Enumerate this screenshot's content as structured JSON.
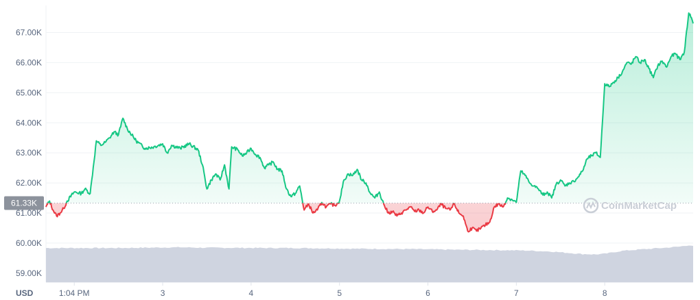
{
  "chart_data": {
    "type": "line",
    "currency_label": "USD",
    "baseline_value": 61330,
    "baseline_label": "61.33K",
    "ylim": [
      58700,
      67900
    ],
    "y_ticks": [
      {
        "value": 59000,
        "label": "59.00K"
      },
      {
        "value": 60000,
        "label": "60.00K"
      },
      {
        "value": 61000,
        "label": "61.00K"
      },
      {
        "value": 62000,
        "label": "62.00K"
      },
      {
        "value": 63000,
        "label": "63.00K"
      },
      {
        "value": 64000,
        "label": "64.00K"
      },
      {
        "value": 65000,
        "label": "65.00K"
      },
      {
        "value": 66000,
        "label": "66.00K"
      },
      {
        "value": 67000,
        "label": "67.00K"
      }
    ],
    "x_start": 1.68,
    "x_end": 9.0,
    "x_ticks": [
      {
        "value": 2.0,
        "label": "1:04 PM"
      },
      {
        "value": 3.0,
        "label": "3"
      },
      {
        "value": 4.0,
        "label": "4"
      },
      {
        "value": 5.0,
        "label": "5"
      },
      {
        "value": 6.0,
        "label": "6"
      },
      {
        "value": 7.0,
        "label": "7"
      },
      {
        "value": 8.0,
        "label": "8"
      }
    ],
    "price_series": {
      "x": [
        1.68,
        1.72,
        1.76,
        1.8,
        1.84,
        1.88,
        1.92,
        2.0,
        2.08,
        2.12,
        2.18,
        2.25,
        2.3,
        2.35,
        2.4,
        2.45,
        2.5,
        2.55,
        2.6,
        2.7,
        2.8,
        2.9,
        3.0,
        3.05,
        3.1,
        3.2,
        3.3,
        3.4,
        3.45,
        3.5,
        3.55,
        3.6,
        3.65,
        3.7,
        3.75,
        3.78,
        3.85,
        3.9,
        3.95,
        4.0,
        4.05,
        4.1,
        4.15,
        4.2,
        4.25,
        4.3,
        4.35,
        4.4,
        4.45,
        4.5,
        4.55,
        4.6,
        4.65,
        4.7,
        4.75,
        4.8,
        4.85,
        4.9,
        4.95,
        5.0,
        5.05,
        5.1,
        5.15,
        5.2,
        5.25,
        5.3,
        5.35,
        5.4,
        5.45,
        5.5,
        5.55,
        5.6,
        5.65,
        5.7,
        5.75,
        5.8,
        5.85,
        5.9,
        5.95,
        6.0,
        6.05,
        6.1,
        6.15,
        6.2,
        6.25,
        6.3,
        6.35,
        6.4,
        6.45,
        6.5,
        6.55,
        6.6,
        6.65,
        6.7,
        6.75,
        6.8,
        6.85,
        6.9,
        6.95,
        7.0,
        7.05,
        7.1,
        7.15,
        7.2,
        7.25,
        7.3,
        7.35,
        7.4,
        7.45,
        7.5,
        7.55,
        7.6,
        7.65,
        7.7,
        7.75,
        7.8,
        7.85,
        7.9,
        7.95,
        8.0,
        8.05,
        8.1,
        8.15,
        8.2,
        8.25,
        8.3,
        8.35,
        8.4,
        8.45,
        8.5,
        8.55,
        8.6,
        8.65,
        8.7,
        8.75,
        8.8,
        8.85,
        8.9,
        8.95,
        8.98,
        9.0
      ],
      "price": [
        61200,
        61400,
        61100,
        60900,
        61000,
        61150,
        61400,
        61700,
        61650,
        61800,
        61650,
        63400,
        63250,
        63350,
        63500,
        63700,
        63600,
        64150,
        63800,
        63400,
        63150,
        63200,
        63300,
        63000,
        63250,
        63150,
        63300,
        63100,
        62600,
        61800,
        62100,
        62300,
        62100,
        62600,
        61800,
        63200,
        63100,
        62900,
        63000,
        63150,
        62950,
        62850,
        62500,
        62600,
        62700,
        62450,
        62400,
        61800,
        61550,
        61650,
        61900,
        61100,
        61300,
        61000,
        61100,
        61350,
        61200,
        61300,
        61250,
        61400,
        62100,
        62300,
        62250,
        62450,
        62100,
        62000,
        61650,
        61500,
        61700,
        61300,
        61000,
        61050,
        60900,
        61000,
        61100,
        61200,
        61050,
        61100,
        61000,
        61200,
        61050,
        61100,
        61300,
        61150,
        61100,
        61300,
        61000,
        60900,
        60400,
        60500,
        60400,
        60500,
        60600,
        60700,
        61200,
        61300,
        61200,
        61500,
        61450,
        61350,
        62400,
        62250,
        62000,
        61900,
        61800,
        61600,
        61700,
        61500,
        61950,
        62100,
        61900,
        62000,
        62050,
        62200,
        62400,
        62800,
        62900,
        63000,
        62850,
        65300,
        65200,
        65350,
        65500,
        65700,
        66000,
        65950,
        66200,
        66000,
        66100,
        65800,
        65500,
        65900,
        66050,
        65850,
        66200,
        66300,
        66100,
        66350,
        67650,
        67500,
        67300
      ]
    },
    "volume_series": {
      "x": [
        1.68,
        2.5,
        3.2,
        3.4,
        4.2,
        4.5,
        5.2,
        5.8,
        6.4,
        6.8,
        7.1,
        7.4,
        7.6,
        7.75,
        7.9,
        8.0,
        8.2,
        8.4,
        8.7,
        8.85,
        8.95,
        9.0
      ],
      "level": [
        0.96,
        0.96,
        0.98,
        0.97,
        0.96,
        0.96,
        0.94,
        0.93,
        0.91,
        0.9,
        0.89,
        0.86,
        0.82,
        0.79,
        0.78,
        0.8,
        0.88,
        0.92,
        0.97,
        1.0,
        1.04,
        1.02
      ]
    },
    "colors": {
      "up": "#16c784",
      "down": "#ea3943",
      "volume": "#cfd4e0",
      "grid": "#eff2f5",
      "tick_text": "#58667e",
      "baseline_tag_bg": "#8c929c"
    }
  },
  "watermark": {
    "text": "CoinMarketCap"
  }
}
